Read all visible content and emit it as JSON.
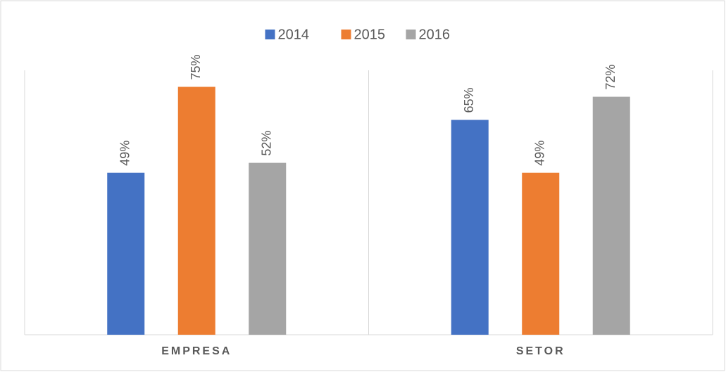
{
  "chart_data": {
    "type": "bar",
    "categories": [
      "EMPRESA",
      "SETOR"
    ],
    "series": [
      {
        "name": "2014",
        "color": "#4472c4",
        "values": [
          49,
          65
        ],
        "value_labels": [
          "49%",
          "65%"
        ]
      },
      {
        "name": "2015",
        "color": "#ed7d31",
        "values": [
          75,
          49
        ],
        "value_labels": [
          "75%",
          "49%"
        ]
      },
      {
        "name": "2016",
        "color": "#a5a5a5",
        "values": [
          52,
          72
        ],
        "value_labels": [
          "52%",
          "72%"
        ]
      }
    ],
    "ylim": [
      0,
      80
    ],
    "legend": "top"
  }
}
